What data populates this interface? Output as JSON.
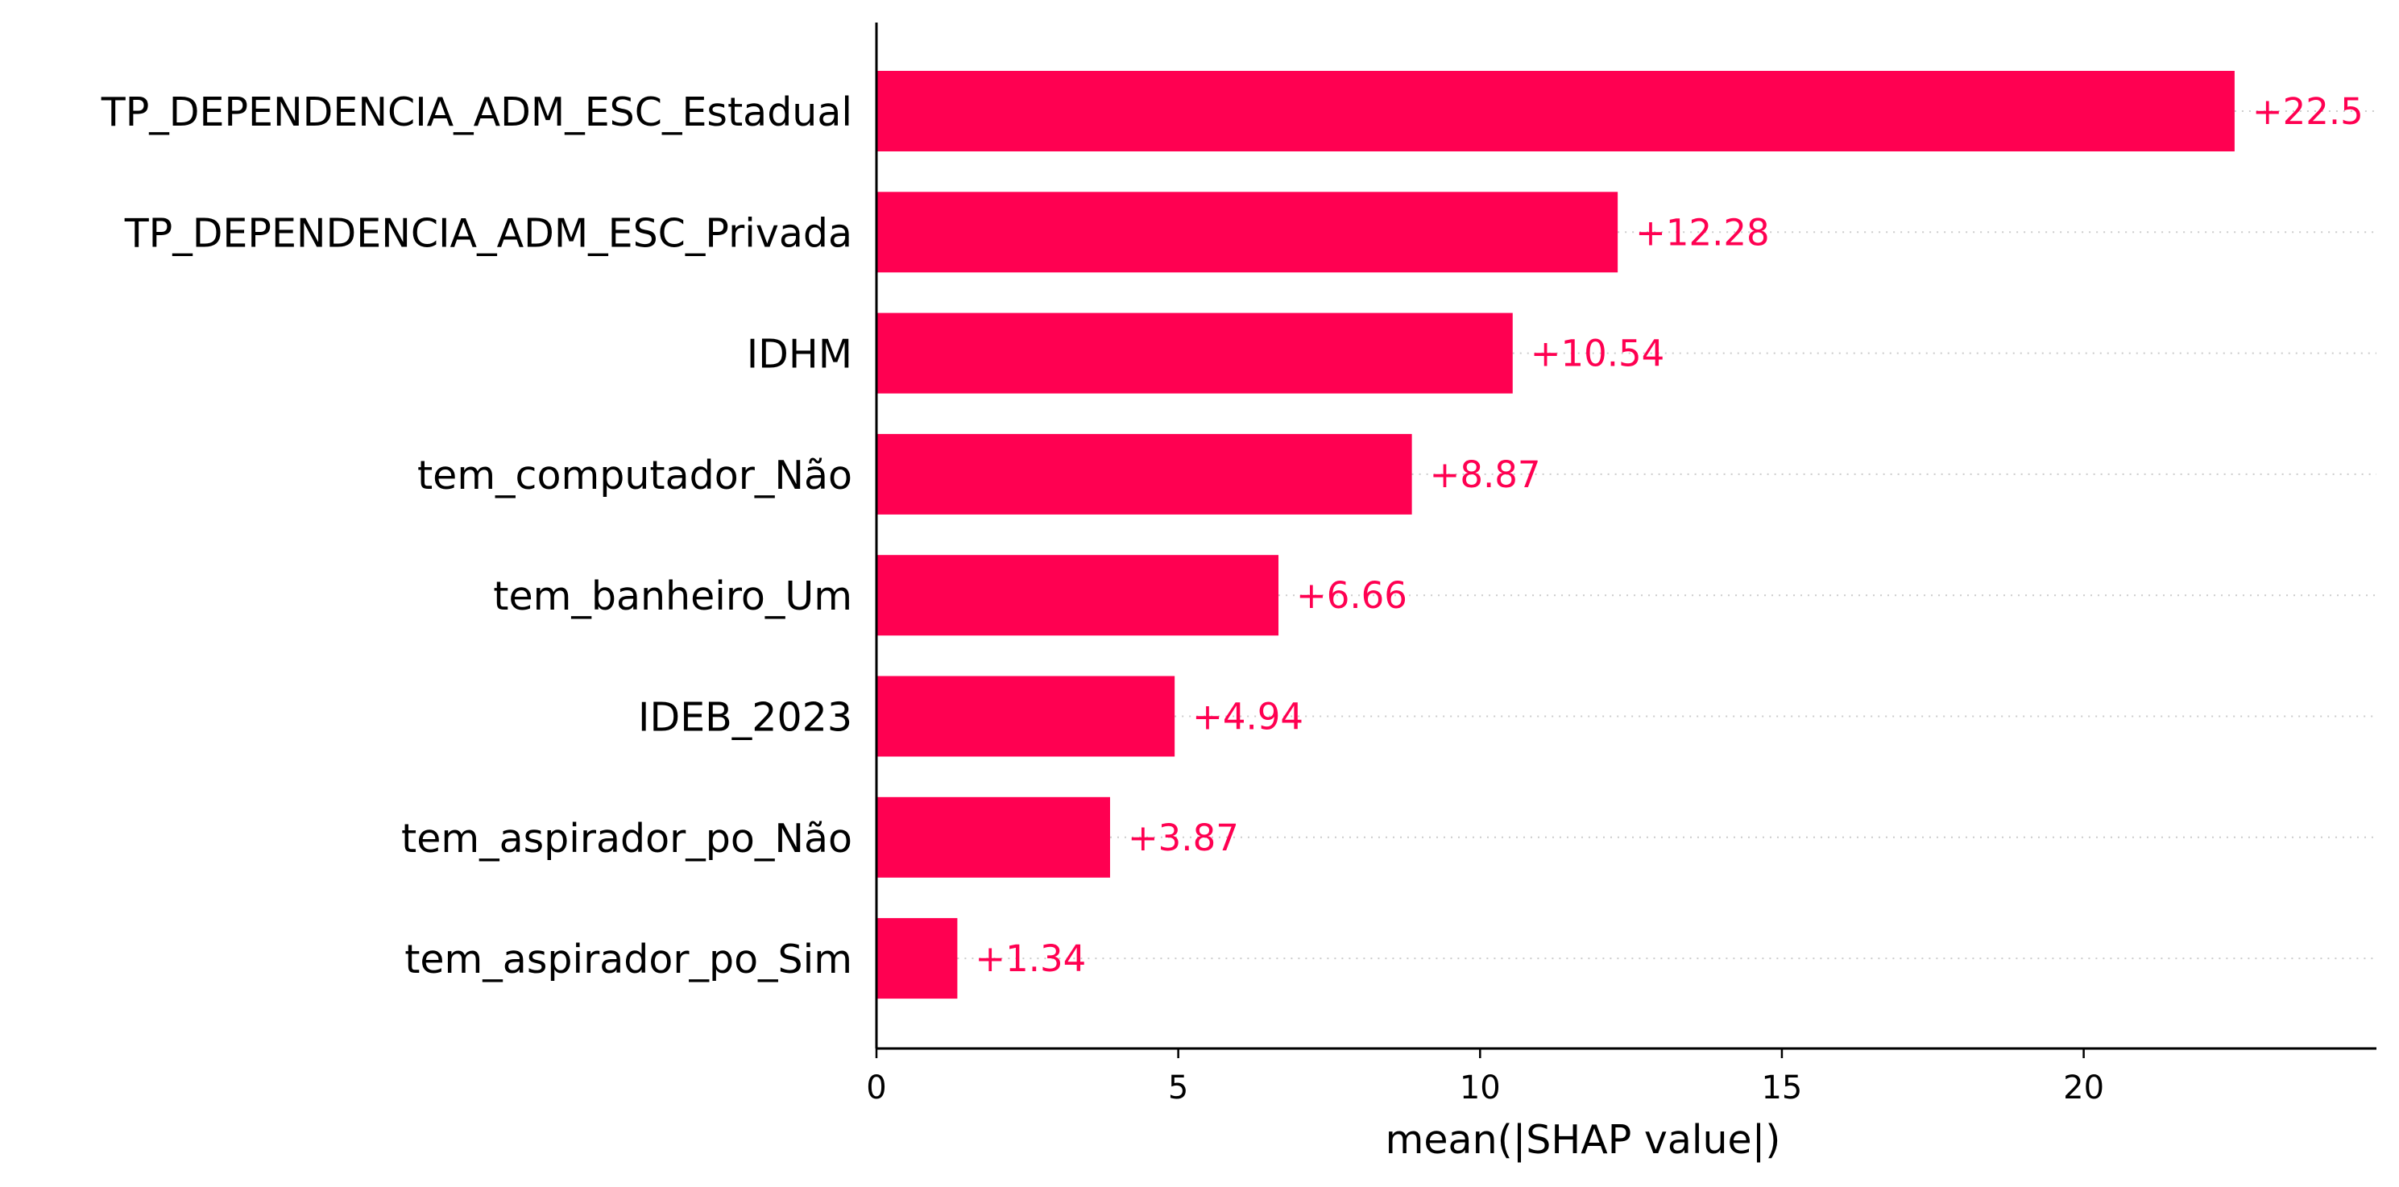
{
  "colors": {
    "bar": "#ff0051",
    "value_text": "#ff0051",
    "axis": "#000000",
    "guide": "#cccccc"
  },
  "chart_data": {
    "type": "bar",
    "orientation": "horizontal",
    "categories": [
      "TP_DEPENDENCIA_ADM_ESC_Estadual",
      "TP_DEPENDENCIA_ADM_ESC_Privada",
      "IDHM",
      "tem_computador_Não",
      "tem_banheiro_Um",
      "IDEB_2023",
      "tem_aspirador_po_Não",
      "tem_aspirador_po_Sim"
    ],
    "values": [
      22.5,
      12.28,
      10.54,
      8.87,
      6.66,
      4.94,
      3.87,
      1.34
    ],
    "value_labels": [
      "+22.5",
      "+12.28",
      "+10.54",
      "+8.87",
      "+6.66",
      "+4.94",
      "+3.87",
      "+1.34"
    ],
    "xlabel": "mean(|SHAP value|)",
    "xlim": [
      0,
      24.85
    ],
    "xticks": [
      0,
      5,
      10,
      15,
      20
    ],
    "xtick_labels": [
      "0",
      "5",
      "10",
      "15",
      "20"
    ],
    "grid": false,
    "guide_lines": "dotted"
  }
}
